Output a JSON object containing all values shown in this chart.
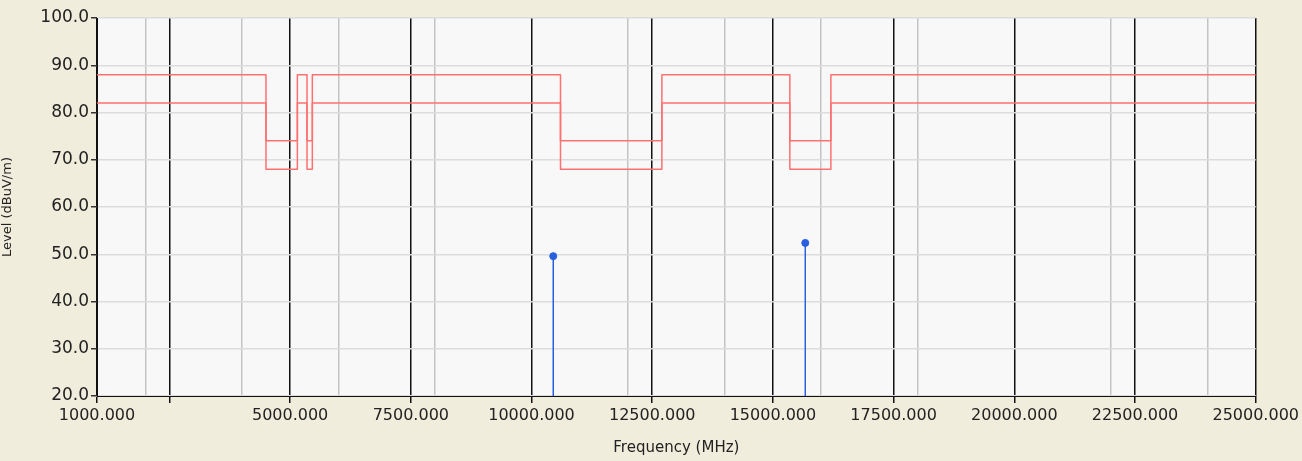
{
  "chart_data": {
    "type": "step",
    "xlabel": "Frequency (MHz)",
    "ylabel": "Level (dBuV/m)",
    "xlim": [
      1000,
      25000
    ],
    "ylim": [
      20,
      100
    ],
    "xticks": [
      {
        "value": 1000,
        "label": "1000.000"
      },
      {
        "value": 2000,
        "label": null
      },
      {
        "value": 2500,
        "label": null
      },
      {
        "value": 4000,
        "label": null
      },
      {
        "value": 5000,
        "label": "5000.000"
      },
      {
        "value": 6000,
        "label": null
      },
      {
        "value": 7500,
        "label": "7500.000"
      },
      {
        "value": 8000,
        "label": null
      },
      {
        "value": 10000,
        "label": "10000.000"
      },
      {
        "value": 12000,
        "label": null
      },
      {
        "value": 12500,
        "label": "12500.000"
      },
      {
        "value": 14000,
        "label": null
      },
      {
        "value": 15000,
        "label": "15000.000"
      },
      {
        "value": 16000,
        "label": null
      },
      {
        "value": 17500,
        "label": "17500.000"
      },
      {
        "value": 18000,
        "label": null
      },
      {
        "value": 20000,
        "label": "20000.000"
      },
      {
        "value": 22000,
        "label": null
      },
      {
        "value": 22500,
        "label": "22500.000"
      },
      {
        "value": 24000,
        "label": null
      },
      {
        "value": 25000,
        "label": "25000.000"
      }
    ],
    "yticks": [
      {
        "value": 20,
        "label": "20.0"
      },
      {
        "value": 30,
        "label": "30.0"
      },
      {
        "value": 40,
        "label": "40.0"
      },
      {
        "value": 50,
        "label": "50.0"
      },
      {
        "value": 60,
        "label": "60.0"
      },
      {
        "value": 70,
        "label": "70.0"
      },
      {
        "value": 80,
        "label": "80.0"
      },
      {
        "value": 90,
        "label": "90.0"
      },
      {
        "value": 100,
        "label": "100.0"
      }
    ],
    "grid": true,
    "legend": false,
    "series": [
      {
        "color": "#ff7070",
        "x": [
          1000,
          4500,
          5150,
          5350,
          5460,
          10600,
          12700,
          15350,
          16200,
          25000
        ],
        "values": [
          88,
          68,
          88,
          68,
          88,
          68,
          88,
          68,
          88,
          88
        ]
      },
      {
        "color": "#ff7070",
        "x": [
          1000,
          4500,
          5150,
          5350,
          5460,
          10600,
          12700,
          15350,
          16200,
          25000
        ],
        "values": [
          82,
          74,
          82,
          74,
          82,
          74,
          82,
          74,
          82,
          82
        ]
      },
      {
        "type": "lollipop",
        "color": "#2860e0",
        "marker": "circle",
        "x": [
          10450,
          15670
        ],
        "values": [
          49.6,
          52.4
        ]
      }
    ]
  }
}
